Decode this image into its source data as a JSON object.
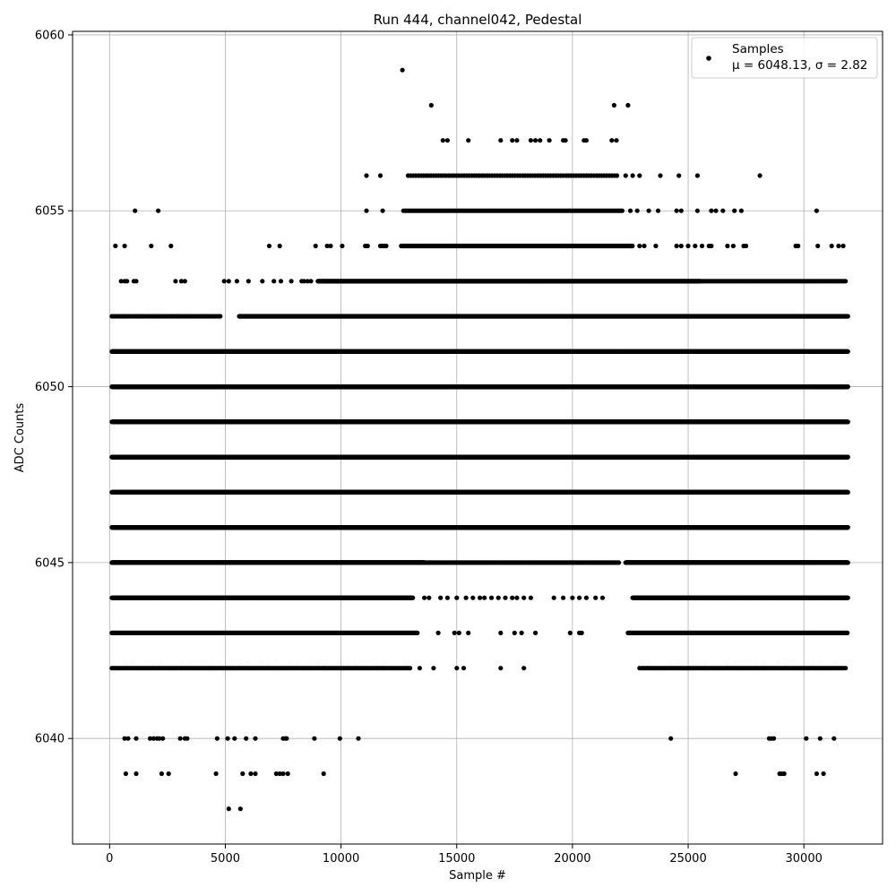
{
  "chart_data": {
    "type": "scatter",
    "title": "Run 444, channel042, Pedestal",
    "xlabel": "Sample #",
    "ylabel": "ADC Counts",
    "xlim": [
      -1600,
      33400
    ],
    "ylim": [
      6037,
      6060.1
    ],
    "xticks": [
      0,
      5000,
      10000,
      15000,
      20000,
      25000,
      30000
    ],
    "yticks": [
      6040,
      6045,
      6050,
      6055,
      6060
    ],
    "grid": true,
    "legend_position": "top-right",
    "marker_color": "#000000",
    "series": [
      {
        "name": "Samples",
        "stats_label": "μ = 6048.13, σ = 2.82",
        "levels": [
          {
            "y": 6038,
            "x": [
              5150,
              5650
            ]
          },
          {
            "y": 6039,
            "x": [
              700,
              1150,
              2250,
              2550,
              4600,
              5750,
              6100,
              6300,
              7200,
              7350,
              7500,
              7700,
              9250,
              27050,
              28950,
              29050,
              29150,
              30550,
              30850
            ]
          },
          {
            "y": 6040,
            "x": [
              650,
              800,
              1150,
              1750,
              1900,
              2050,
              2150,
              2300,
              3050,
              3250,
              3350,
              4650,
              5100,
              5400,
              5900,
              6300,
              7500,
              7600,
              7650,
              8850,
              9950,
              10750,
              24250,
              28500,
              28600,
              28700,
              30100,
              30700,
              31300
            ]
          },
          {
            "y": 6042,
            "ranges": [
              [
                100,
                13000,
                80
              ],
              [
                23000,
                31800,
                80
              ]
            ],
            "x": [
              13400,
              14000,
              15000,
              15300,
              16900,
              17900,
              22900
            ]
          },
          {
            "y": 6043,
            "ranges": [
              [
                100,
                13300,
                40
              ],
              [
                22400,
                31900,
                40
              ]
            ],
            "x": [
              14200,
              14900,
              15100,
              15500,
              16900,
              17500,
              17800,
              18400,
              19900,
              20300,
              20400,
              22500
            ]
          },
          {
            "y": 6044,
            "ranges": [
              [
                100,
                13100,
                20
              ],
              [
                22600,
                31900,
                20
              ]
            ],
            "x": [
              13600,
              13800,
              14300,
              14600,
              15000,
              15400,
              15700,
              16000,
              16200,
              16500,
              16800,
              17100,
              17400,
              17600,
              17900,
              18200,
              19200,
              19600,
              20000,
              20300,
              20600,
              21000,
              21300
            ]
          },
          {
            "y": 6045,
            "ranges": [
              [
                100,
                13600,
                12
              ],
              [
                13600,
                22000,
                60
              ],
              [
                22300,
                31900,
                12
              ]
            ]
          },
          {
            "y": 6046,
            "ranges": [
              [
                100,
                31900,
                10
              ]
            ]
          },
          {
            "y": 6047,
            "ranges": [
              [
                100,
                31900,
                10
              ]
            ]
          },
          {
            "y": 6048,
            "ranges": [
              [
                100,
                31900,
                10
              ]
            ]
          },
          {
            "y": 6049,
            "ranges": [
              [
                100,
                31900,
                10
              ]
            ]
          },
          {
            "y": 6050,
            "ranges": [
              [
                100,
                31900,
                10
              ]
            ]
          },
          {
            "y": 6051,
            "ranges": [
              [
                100,
                31900,
                12
              ]
            ]
          },
          {
            "y": 6052,
            "ranges": [
              [
                100,
                4800,
                90
              ],
              [
                5600,
                31900,
                25
              ]
            ]
          },
          {
            "y": 6053,
            "ranges": [
              [
                9000,
                25500,
                25
              ],
              [
                25500,
                31800,
                60
              ]
            ],
            "x": [
              500,
              650,
              750,
              1050,
              1150,
              2850,
              3100,
              3250,
              4950,
              5150,
              5500,
              6000,
              6600,
              7100,
              7400,
              7850,
              8300,
              8400,
              8550,
              8700
            ]
          },
          {
            "y": 6054,
            "ranges": [
              [
                12600,
                22600,
                30
              ]
            ],
            "x": [
              250,
              650,
              1800,
              2650,
              6900,
              7350,
              8900,
              9400,
              9550,
              10050,
              11050,
              11150,
              11700,
              11800,
              11900,
              11950,
              22900,
              23100,
              23600,
              24500,
              24700,
              25000,
              25300,
              25600,
              25900,
              26000,
              26700,
              26950,
              27400,
              27500,
              29650,
              29750,
              30600,
              31200,
              31500,
              31700
            ]
          },
          {
            "y": 6055,
            "ranges": [
              [
                12700,
                22200,
                70
              ]
            ],
            "x": [
              1100,
              2100,
              11100,
              11800,
              22500,
              22800,
              23300,
              23700,
              24500,
              24700,
              25400,
              26000,
              26200,
              26500,
              27000,
              27300,
              30550
            ]
          },
          {
            "y": 6056,
            "ranges": [
              [
                12900,
                22000,
                110
              ]
            ],
            "x": [
              11100,
              11700,
              22300,
              22600,
              22900,
              23800,
              24600,
              25400,
              28100
            ]
          },
          {
            "y": 6057,
            "x": [
              14400,
              14600,
              15500,
              16900,
              17400,
              17600,
              18200,
              18400,
              18600,
              19000,
              19600,
              19700,
              20500,
              20600,
              21700,
              21900
            ]
          },
          {
            "y": 6058,
            "x": [
              13900,
              21800,
              22400
            ]
          },
          {
            "y": 6059,
            "x": [
              12650
            ]
          }
        ]
      }
    ]
  }
}
